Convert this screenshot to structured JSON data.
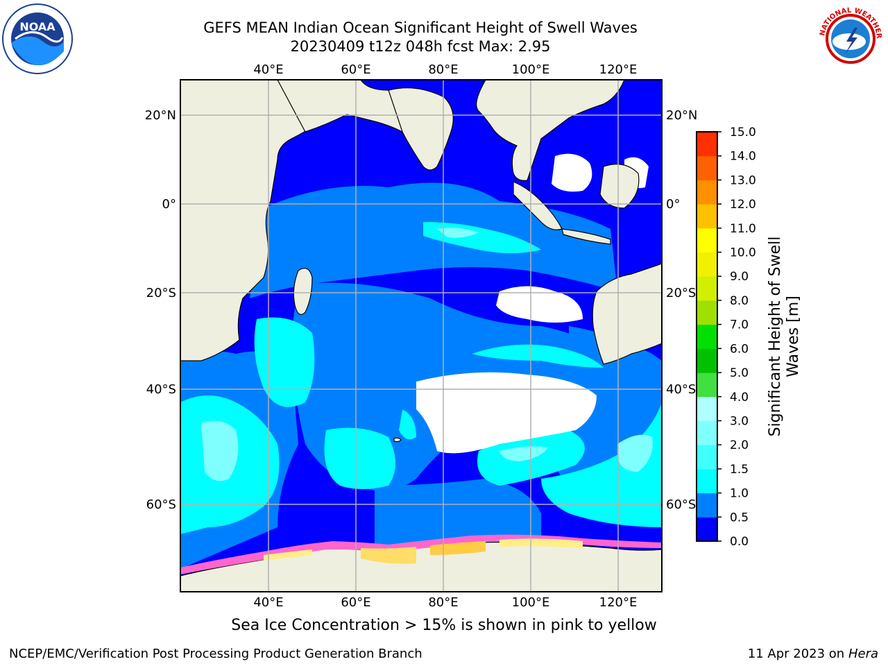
{
  "header": {
    "title_line1": "GEFS MEAN Indian Ocean Significant Height of Swell Waves",
    "title_line2": "20230409 t12z 048h fcst   Max: 2.95"
  },
  "logos": {
    "left": {
      "icon": "noaa-logo-icon",
      "text": "NOAA"
    },
    "right": {
      "icon": "nws-logo-icon",
      "text": "NATIONAL WEATHER SERVICE"
    }
  },
  "map": {
    "lon_ticks": [
      "40°E",
      "60°E",
      "80°E",
      "100°E",
      "120°E"
    ],
    "lat_ticks_left": [
      "20°N",
      "0°",
      "20°S",
      "40°S",
      "60°S"
    ],
    "lat_ticks_right": [
      "20°N",
      "0°",
      "20°S",
      "40°S",
      "60°S"
    ],
    "extent": {
      "lon_min": 20,
      "lon_max": 130,
      "lat_min": -77,
      "lat_max": 28
    },
    "land_color": "#efefe0",
    "ocean_base_color": "#0000ff"
  },
  "colorbar": {
    "label": "Significant Height of Swell Waves [m]",
    "ticks": [
      "0.0",
      "0.5",
      "1.0",
      "1.5",
      "2.0",
      "3.0",
      "4.0",
      "5.0",
      "6.0",
      "7.0",
      "8.0",
      "9.0",
      "10.0",
      "11.0",
      "12.0",
      "13.0",
      "14.0",
      "15.0"
    ],
    "colors": [
      "#0000ff",
      "#0080ff",
      "#00ffff",
      "#40ffff",
      "#80ffff",
      "#b0ffff",
      "#40e040",
      "#00c000",
      "#00e000",
      "#a0e000",
      "#d0f000",
      "#f0f000",
      "#ffff00",
      "#ffc000",
      "#ff9000",
      "#ff6000",
      "#ff3000",
      "#ff0000"
    ]
  },
  "caption": "Sea Ice Concentration > 15% is shown in pink to yellow",
  "footer": {
    "left": "NCEP/EMC/Verification Post Processing Product Generation Branch",
    "right_date": "11 Apr 2023 on ",
    "right_host": "Hera"
  }
}
